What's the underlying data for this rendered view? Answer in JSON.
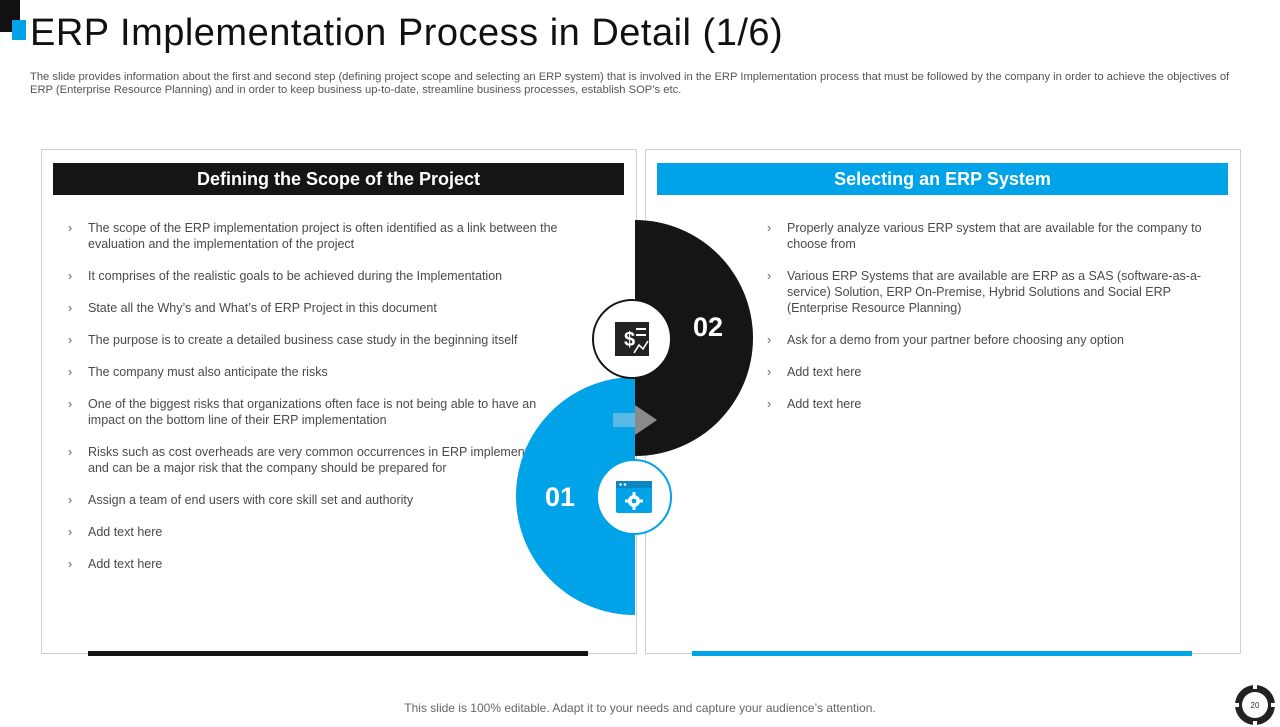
{
  "slide": {
    "title": "ERP Implementation Process in Detail (1/6)",
    "subtitle": "The slide provides information about the first and second step (defining project scope and selecting an ERP system) that is involved in the ERP Implementation process that must be followed by the company in order to achieve the objectives of ERP (Enterprise Resource Planning) and in order to keep business up-to-date, streamline business processes, establish SOP’s etc.",
    "footer": "This slide is 100% editable. Adapt it to your needs and capture your audience’s attention.",
    "page_number": "20"
  },
  "left_panel": {
    "header": "Defining the Scope of the Project",
    "items": [
      "The scope of the ERP implementation project is often identified as a link between the evaluation and the implementation of the project",
      "It comprises of the realistic goals to be achieved during the Implementation",
      "State all the Why’s and What’s of ERP Project in this document",
      "The purpose is to create a detailed business case study in the beginning itself",
      "The company must also anticipate the risks",
      "One of the biggest risks that organizations often face is not being able to have an impact on the bottom line of their ERP implementation",
      "Risks such as cost overheads are very common occurrences in ERP implementations and can be a major risk that the company should be prepared for",
      "Assign a team of end users with core skill set and authority",
      "Add text here",
      "Add text here"
    ]
  },
  "right_panel": {
    "header": "Selecting an ERP System",
    "items": [
      "Properly analyze various ERP system that are available for the company to choose from",
      "Various ERP Systems that are available are ERP as a SAS (software-as-a-service) Solution, ERP On-Premise, Hybrid Solutions and Social ERP (Enterprise Resource Planning)",
      "Ask for a demo from your partner before choosing any option",
      "Add text here",
      "Add text here"
    ]
  },
  "steps": {
    "step1_number": "01",
    "step2_number": "02",
    "step1_icon": "settings-window-icon",
    "step2_icon": "finance-report-icon"
  },
  "colors": {
    "accent_blue": "#00a2e8",
    "dark": "#151515"
  }
}
